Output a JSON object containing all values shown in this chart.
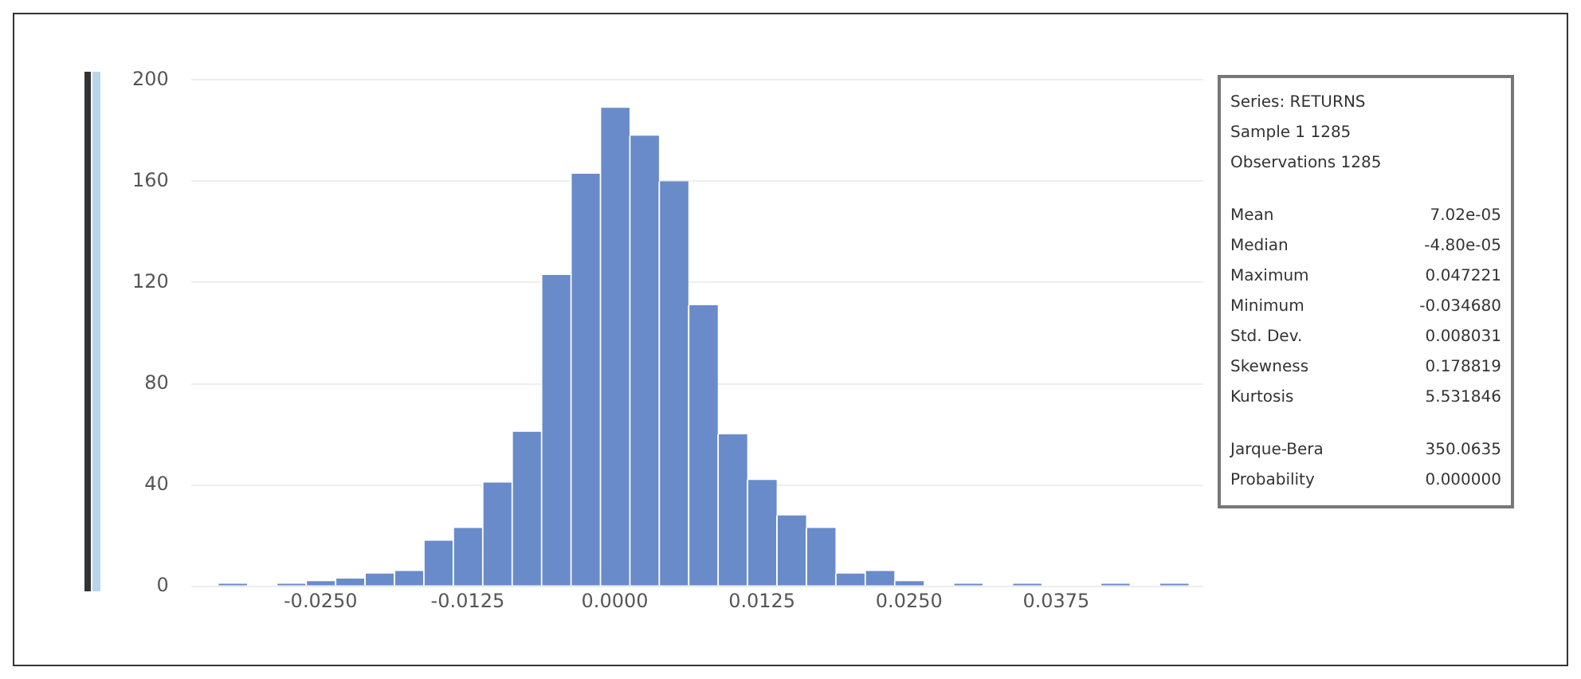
{
  "chart_data": {
    "type": "histogram",
    "color": "#6a8bc9",
    "bins": [
      -0.03375,
      -0.03125,
      -0.02875,
      -0.02625,
      -0.02375,
      -0.02125,
      -0.01875,
      -0.01625,
      -0.01375,
      -0.01125,
      -0.00875,
      -0.00625,
      -0.00375,
      -0.00125,
      0.00125,
      0.00375,
      0.00625,
      0.00875,
      0.01125,
      0.01375,
      0.01625,
      0.01875,
      0.02125,
      0.02375,
      0.02625,
      0.02875,
      0.03125,
      0.03375,
      0.03625,
      0.03875,
      0.04125,
      0.04375,
      0.04625,
      0.04875
    ],
    "values": [
      1,
      0,
      1,
      2,
      3,
      5,
      6,
      18,
      23,
      41,
      61,
      123,
      163,
      189,
      178,
      160,
      111,
      60,
      42,
      28,
      23,
      5,
      6,
      2,
      0,
      1,
      0,
      1,
      0,
      0,
      1,
      0,
      1
    ],
    "xlim": [
      -0.036,
      0.05
    ],
    "xticks": [
      {
        "value": -0.025,
        "label": "-0.0250"
      },
      {
        "value": -0.0125,
        "label": "-0.0125"
      },
      {
        "value": 0,
        "label": "0.0000"
      },
      {
        "value": 0.0125,
        "label": "0.0125"
      },
      {
        "value": 0.025,
        "label": "0.0250"
      },
      {
        "value": 0.0375,
        "label": "0.0375"
      }
    ],
    "ylim": [
      0,
      200
    ],
    "yticks": [
      0,
      40,
      80,
      120,
      160,
      200
    ],
    "grid": "y",
    "annotations": [
      "Series: RETURNS",
      "Sample 1 1285",
      "Observations 1285",
      "Mean",
      "7.02e-05",
      "Median",
      "-4.80e-05",
      "Maximum",
      "0.047221",
      "Minimum",
      "-0.034680",
      "Std. Dev.",
      "0.008031",
      "Skewness",
      "0.178819",
      "Kurtosis",
      "5.531846",
      "Jarque-Bera",
      "350.0635",
      "Probability",
      "0.000000"
    ]
  }
}
